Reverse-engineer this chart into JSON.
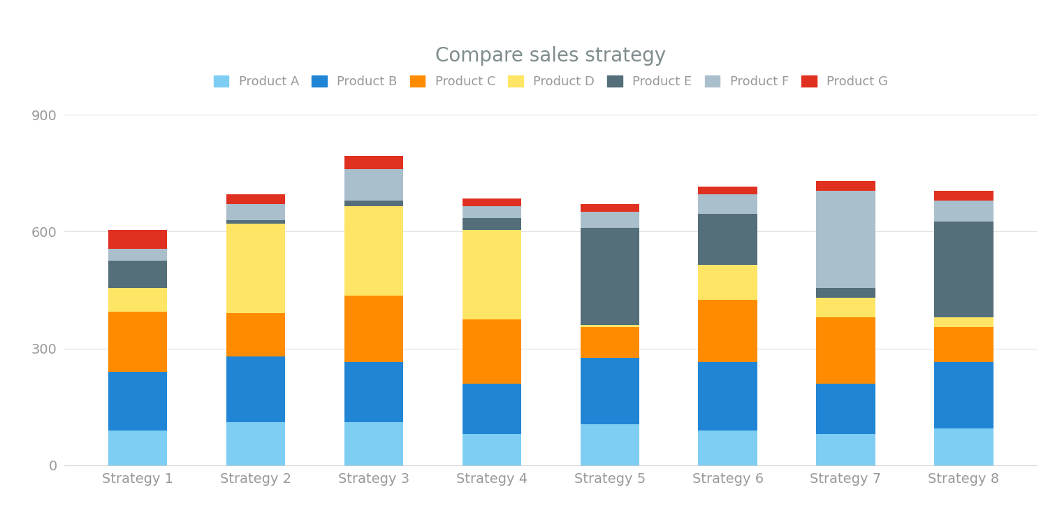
{
  "title": "Compare sales strategy",
  "title_fontsize": 20,
  "title_color": "#7f8c8d",
  "categories": [
    "Strategy 1",
    "Strategy 2",
    "Strategy 3",
    "Strategy 4",
    "Strategy 5",
    "Strategy 6",
    "Strategy 7",
    "Strategy 8"
  ],
  "products": [
    "Product A",
    "Product B",
    "Product C",
    "Product D",
    "Product E",
    "Product F",
    "Product G"
  ],
  "colors": [
    "#7ECEF4",
    "#2185D5",
    "#FF8C00",
    "#FFE566",
    "#546E7A",
    "#AABFCC",
    "#E03020"
  ],
  "data": [
    [
      90,
      150,
      155,
      60,
      70,
      30,
      50
    ],
    [
      110,
      170,
      110,
      230,
      10,
      40,
      25
    ],
    [
      110,
      155,
      170,
      230,
      15,
      80,
      35
    ],
    [
      80,
      130,
      165,
      230,
      30,
      30,
      20
    ],
    [
      105,
      170,
      80,
      5,
      250,
      40,
      20
    ],
    [
      90,
      175,
      160,
      90,
      130,
      50,
      20
    ],
    [
      80,
      130,
      170,
      50,
      25,
      250,
      25
    ],
    [
      95,
      170,
      90,
      25,
      245,
      55,
      25
    ]
  ],
  "ylim": [
    0,
    900
  ],
  "yticks": [
    0,
    300,
    600,
    900
  ],
  "background_color": "#ffffff",
  "plot_bg_color": "#ffffff",
  "bar_width": 0.5,
  "legend_fontsize": 13,
  "tick_fontsize": 14,
  "axis_color": "#999999",
  "grid_color": "#e0e0e0"
}
